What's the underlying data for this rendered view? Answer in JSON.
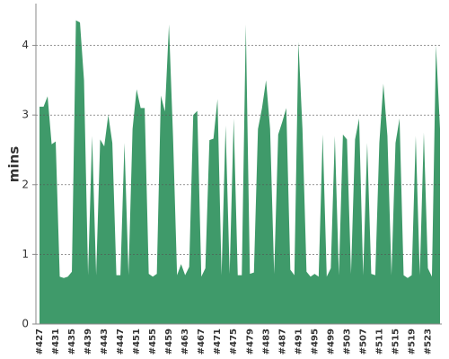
{
  "chart_data": {
    "type": "area",
    "y_label": "mins",
    "categories": [
      "#427",
      null,
      null,
      null,
      "#431",
      null,
      null,
      null,
      "#435",
      null,
      null,
      null,
      "#439",
      null,
      null,
      null,
      "#443",
      null,
      null,
      null,
      "#447",
      null,
      null,
      null,
      "#451",
      null,
      null,
      null,
      "#455",
      null,
      null,
      null,
      "#459",
      null,
      null,
      null,
      "#463",
      null,
      null,
      null,
      "#467",
      null,
      null,
      null,
      "#471",
      null,
      null,
      null,
      "#475",
      null,
      null,
      null,
      "#479",
      null,
      null,
      null,
      "#483",
      null,
      null,
      null,
      "#487",
      null,
      null,
      null,
      "#491",
      null,
      null,
      null,
      "#495",
      null,
      null,
      null,
      "#499",
      null,
      null,
      null,
      "#503",
      null,
      null,
      null,
      "#507",
      null,
      null,
      null,
      "#511",
      null,
      null,
      null,
      "#515",
      null,
      null,
      null,
      "#519",
      null,
      null,
      null,
      "#523",
      null,
      null,
      null
    ],
    "values": [
      3.12,
      3.12,
      3.27,
      2.58,
      2.62,
      0.68,
      0.66,
      0.68,
      0.75,
      4.36,
      4.33,
      3.5,
      0.7,
      2.7,
      0.7,
      2.65,
      2.55,
      3.0,
      2.6,
      0.7,
      0.7,
      2.6,
      0.7,
      2.8,
      3.37,
      3.1,
      3.1,
      0.72,
      0.68,
      0.72,
      3.28,
      3.05,
      4.3,
      2.7,
      0.7,
      0.86,
      0.7,
      0.82,
      3.0,
      3.06,
      0.68,
      0.8,
      2.64,
      2.66,
      3.23,
      0.7,
      2.85,
      0.72,
      2.95,
      0.7,
      0.7,
      4.3,
      0.72,
      0.74,
      2.8,
      3.1,
      3.5,
      2.8,
      0.72,
      2.72,
      2.9,
      3.1,
      0.78,
      0.7,
      4.05,
      2.8,
      0.75,
      0.68,
      0.72,
      0.68,
      2.72,
      0.68,
      0.8,
      2.7,
      0.7,
      2.72,
      2.65,
      0.72,
      2.65,
      2.95,
      0.7,
      2.6,
      0.72,
      0.7,
      2.6,
      3.45,
      2.7,
      0.7,
      2.6,
      2.95,
      0.7,
      0.66,
      0.7,
      2.7,
      0.7,
      2.75,
      0.8,
      0.68,
      4.0,
      2.8
    ],
    "color": "#3f9a6a",
    "ylim": [
      0,
      4.6
    ],
    "yticks": [
      0,
      1,
      2,
      3,
      4
    ],
    "grid": true
  }
}
